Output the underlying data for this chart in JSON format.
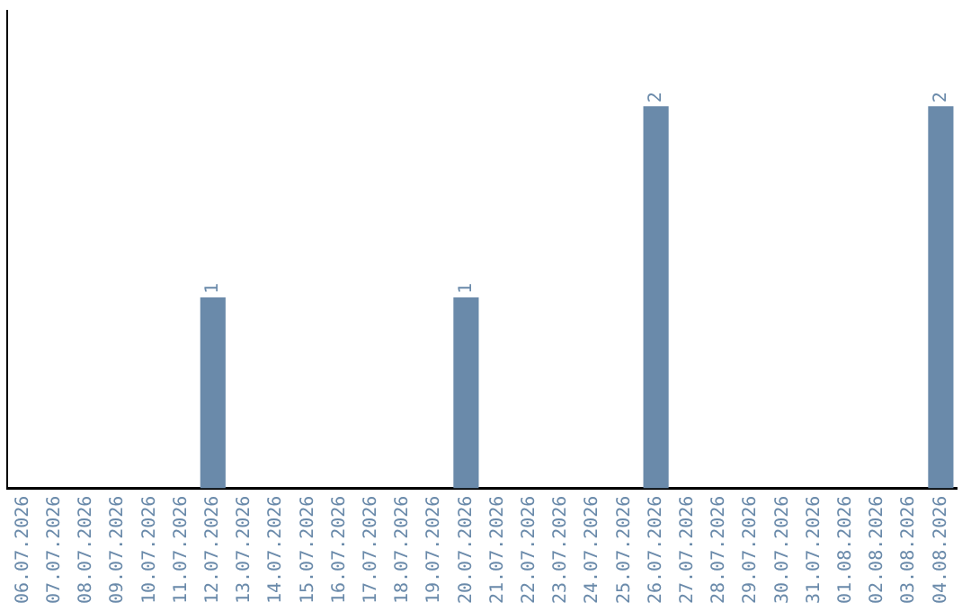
{
  "chart_data": {
    "type": "bar",
    "categories": [
      "06.07.2026",
      "07.07.2026",
      "08.07.2026",
      "09.07.2026",
      "10.07.2026",
      "11.07.2026",
      "12.07.2026",
      "13.07.2026",
      "14.07.2026",
      "15.07.2026",
      "16.07.2026",
      "17.07.2026",
      "18.07.2026",
      "19.07.2026",
      "20.07.2026",
      "21.07.2026",
      "22.07.2026",
      "23.07.2026",
      "24.07.2026",
      "25.07.2026",
      "26.07.2026",
      "27.07.2026",
      "28.07.2026",
      "29.07.2026",
      "30.07.2026",
      "31.07.2026",
      "01.08.2026",
      "02.08.2026",
      "03.08.2026",
      "04.08.2026"
    ],
    "values": [
      0,
      0,
      0,
      0,
      0,
      0,
      1,
      0,
      0,
      0,
      0,
      0,
      0,
      0,
      1,
      0,
      0,
      0,
      0,
      0,
      2,
      0,
      0,
      0,
      0,
      0,
      0,
      0,
      0,
      2
    ],
    "value_labels": [
      null,
      null,
      null,
      null,
      null,
      null,
      "1",
      null,
      null,
      null,
      null,
      null,
      null,
      null,
      "1",
      null,
      null,
      null,
      null,
      null,
      "2",
      null,
      null,
      null,
      null,
      null,
      null,
      null,
      null,
      "2"
    ],
    "color": "#6a8aaa",
    "tick_labels": "x",
    "grid": false,
    "legend": false
  }
}
